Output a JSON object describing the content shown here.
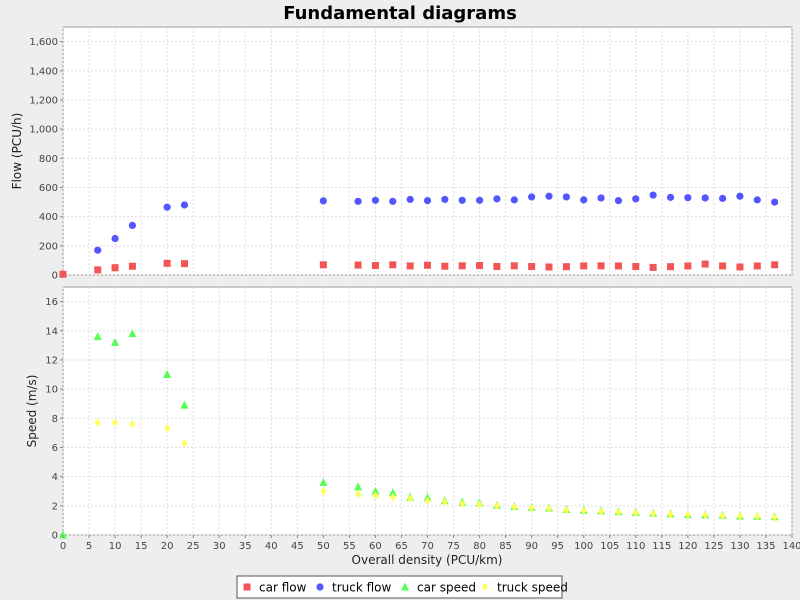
{
  "chart_data": {
    "type": "scatter",
    "title": "Fundamental diagrams",
    "legend_position": "bottom",
    "grid": true,
    "xlabel": "Overall density (PCU/km)",
    "xlim": [
      0,
      140
    ],
    "x_ticks": [
      0,
      5,
      10,
      15,
      20,
      25,
      30,
      35,
      40,
      45,
      50,
      55,
      60,
      65,
      70,
      75,
      80,
      85,
      90,
      95,
      100,
      105,
      110,
      115,
      120,
      125,
      130,
      135,
      140
    ],
    "x": [
      0,
      6.67,
      10,
      13.33,
      20,
      23.33,
      50,
      56.67,
      60,
      63.33,
      66.67,
      70,
      73.33,
      76.67,
      80,
      83.33,
      86.67,
      90,
      93.33,
      96.67,
      100,
      103.33,
      106.67,
      110,
      113.33,
      116.67,
      120,
      123.33,
      126.67,
      130,
      133.33,
      136.67
    ],
    "subplots": [
      {
        "ylabel": "Flow (PCU/h)",
        "ylim": [
          0,
          1700
        ],
        "y_ticks": [
          0,
          200,
          400,
          600,
          800,
          1000,
          1200,
          1400,
          1600
        ],
        "y_tick_labels": [
          "0",
          "200",
          "400",
          "600",
          "800",
          "1,000",
          "1,200",
          "1,400",
          "1,600"
        ],
        "series": [
          {
            "name": "car flow",
            "marker": "square",
            "color": "#f25555",
            "values": [
              5,
              35,
              50,
              60,
              80,
              78,
              70,
              68,
              65,
              70,
              62,
              67,
              60,
              63,
              65,
              58,
              63,
              58,
              55,
              57,
              62,
              63,
              62,
              58,
              52,
              57,
              62,
              75,
              62,
              55,
              62,
              70
            ]
          },
          {
            "name": "truck flow",
            "marker": "circle",
            "color": "#5555ff",
            "values": [
              null,
              170,
              250,
              340,
              465,
              480,
              508,
              505,
              512,
              505,
              518,
              510,
              518,
              512,
              512,
              522,
              515,
              535,
              540,
              535,
              515,
              528,
              510,
              522,
              548,
              532,
              530,
              528,
              525,
              540,
              515,
              500
            ]
          }
        ]
      },
      {
        "ylabel": "Speed (m/s)",
        "ylim": [
          0,
          17
        ],
        "y_ticks": [
          0,
          2,
          4,
          6,
          8,
          10,
          12,
          14,
          16
        ],
        "y_tick_labels": [
          "0",
          "2",
          "4",
          "6",
          "8",
          "10",
          "12",
          "14",
          "16"
        ],
        "series": [
          {
            "name": "car speed",
            "marker": "triangle",
            "color": "#55ff55",
            "values": [
              0,
              13.6,
              13.2,
              13.8,
              11.0,
              8.9,
              3.6,
              3.3,
              3.0,
              2.9,
              2.6,
              2.55,
              2.35,
              2.25,
              2.2,
              2.05,
              1.95,
              1.9,
              1.85,
              1.75,
              1.7,
              1.65,
              1.6,
              1.55,
              1.5,
              1.45,
              1.4,
              1.38,
              1.35,
              1.3,
              1.28,
              1.25
            ]
          },
          {
            "name": "truck speed",
            "marker": "diamond",
            "color": "#ffff55",
            "values": [
              null,
              7.7,
              7.7,
              7.6,
              7.3,
              6.3,
              3.0,
              2.8,
              2.7,
              2.6,
              2.5,
              2.35,
              2.25,
              2.15,
              2.1,
              2.0,
              1.9,
              1.85,
              1.8,
              1.7,
              1.65,
              1.6,
              1.55,
              1.5,
              1.45,
              1.4,
              1.38,
              1.35,
              1.3,
              1.28,
              1.25,
              1.2
            ]
          }
        ]
      }
    ]
  }
}
